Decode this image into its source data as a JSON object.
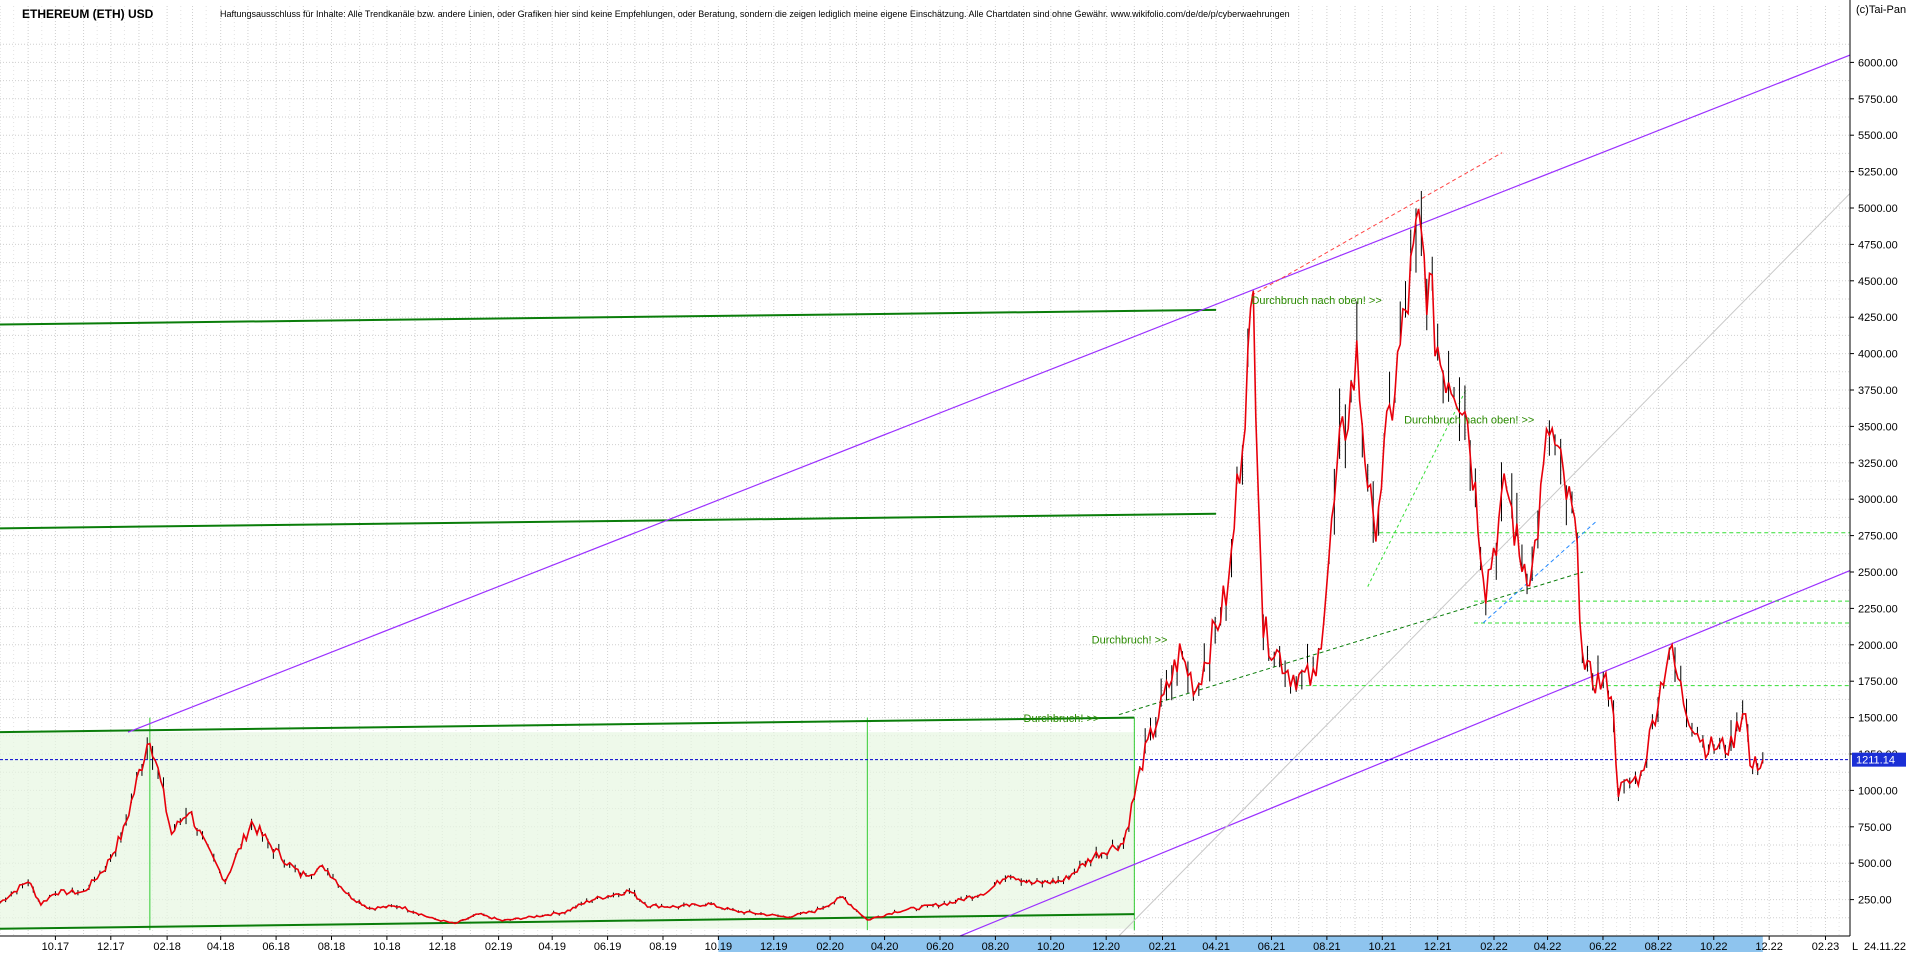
{
  "chart_data": {
    "type": "line",
    "title": "ETHEREUM (ETH) USD",
    "subtitle": "Haftungsausschluss für Inhalte: Alle Trendkanäle bzw. andere Linien, oder Grafiken hier sind keine Empfehlungen, oder Beratung, sondern die zeigen lediglich meine eigene Einschätzung. Alle Chartdaten sind ohne Gewähr.  www.wikifolio.com/de/de/p/cyberwaehrungen",
    "copyright": "(c)Tai-Pan",
    "current_price_label": "1211.14",
    "last_date_label": "24.11.22",
    "axis_letter": "L",
    "ylim": [
      0,
      6250
    ],
    "y_ticks": [
      "250.00",
      "500.00",
      "750.00",
      "1000.00",
      "1250.00",
      "1500.00",
      "1750.00",
      "2000.00",
      "2250.00",
      "2500.00",
      "2750.00",
      "3000.00",
      "3250.00",
      "3500.00",
      "3750.00",
      "4000.00",
      "4250.00",
      "4500.00",
      "4750.00",
      "5000.00",
      "5250.00",
      "5500.00",
      "5750.00",
      "6000.00"
    ],
    "x_ticks": [
      "10.17",
      "12.17",
      "02.18",
      "04.18",
      "06.18",
      "08.18",
      "10.18",
      "12.18",
      "02.19",
      "04.19",
      "06.19",
      "08.19",
      "10.19",
      "12.19",
      "02.20",
      "04.20",
      "06.20",
      "08.20",
      "10.20",
      "12.20",
      "02.21",
      "04.21",
      "06.21",
      "08.21",
      "10.21",
      "12.21",
      "02.22",
      "04.22",
      "06.22",
      "08.22",
      "10.22",
      "12.22",
      "02.23"
    ],
    "x_range": [
      "2017-08-01",
      "2023-02-28"
    ],
    "series": [
      {
        "color": "#e8000b",
        "points": [
          [
            "2017-08-01",
            230
          ],
          [
            "2017-09-01",
            380
          ],
          [
            "2017-09-15",
            220
          ],
          [
            "2017-10-01",
            300
          ],
          [
            "2017-11-01",
            300
          ],
          [
            "2017-11-25",
            470
          ],
          [
            "2017-12-15",
            720
          ],
          [
            "2018-01-13",
            1390
          ],
          [
            "2018-02-06",
            700
          ],
          [
            "2018-02-25",
            870
          ],
          [
            "2018-03-15",
            620
          ],
          [
            "2018-04-06",
            380
          ],
          [
            "2018-05-05",
            780
          ],
          [
            "2018-06-01",
            580
          ],
          [
            "2018-06-28",
            420
          ],
          [
            "2018-07-25",
            470
          ],
          [
            "2018-08-20",
            280
          ],
          [
            "2018-09-12",
            190
          ],
          [
            "2018-10-15",
            205
          ],
          [
            "2018-11-20",
            120
          ],
          [
            "2018-12-15",
            85
          ],
          [
            "2019-01-10",
            150
          ],
          [
            "2019-02-05",
            105
          ],
          [
            "2019-03-15",
            135
          ],
          [
            "2019-04-15",
            165
          ],
          [
            "2019-05-15",
            250
          ],
          [
            "2019-06-25",
            310
          ],
          [
            "2019-07-15",
            210
          ],
          [
            "2019-08-15",
            200
          ],
          [
            "2019-09-20",
            220
          ],
          [
            "2019-10-20",
            170
          ],
          [
            "2019-11-20",
            150
          ],
          [
            "2019-12-15",
            130
          ],
          [
            "2020-01-15",
            170
          ],
          [
            "2020-02-15",
            265
          ],
          [
            "2020-03-13",
            110
          ],
          [
            "2020-04-15",
            170
          ],
          [
            "2020-05-15",
            200
          ],
          [
            "2020-06-15",
            230
          ],
          [
            "2020-07-25",
            310
          ],
          [
            "2020-08-15",
            430
          ],
          [
            "2020-09-10",
            360
          ],
          [
            "2020-10-15",
            380
          ],
          [
            "2020-11-20",
            560
          ],
          [
            "2020-12-20",
            640
          ],
          [
            "2021-01-10",
            1200
          ],
          [
            "2021-02-20",
            1940
          ],
          [
            "2021-03-10",
            1700
          ],
          [
            "2021-04-15",
            2400
          ],
          [
            "2021-05-12",
            4350
          ],
          [
            "2021-05-23",
            2100
          ],
          [
            "2021-06-22",
            1800
          ],
          [
            "2021-07-20",
            1750
          ],
          [
            "2021-08-15",
            3300
          ],
          [
            "2021-09-03",
            3950
          ],
          [
            "2021-09-21",
            2750
          ],
          [
            "2021-10-15",
            3800
          ],
          [
            "2021-11-10",
            4850
          ],
          [
            "2021-12-04",
            3950
          ],
          [
            "2021-12-31",
            3700
          ],
          [
            "2022-01-23",
            2400
          ],
          [
            "2022-02-15",
            3100
          ],
          [
            "2022-03-01",
            2600
          ],
          [
            "2022-03-15",
            2500
          ],
          [
            "2022-04-03",
            3500
          ],
          [
            "2022-05-01",
            2800
          ],
          [
            "2022-05-12",
            1800
          ],
          [
            "2022-06-10",
            1700
          ],
          [
            "2022-06-18",
            1000
          ],
          [
            "2022-07-13",
            1100
          ],
          [
            "2022-08-13",
            1980
          ],
          [
            "2022-09-01",
            1550
          ],
          [
            "2022-09-22",
            1300
          ],
          [
            "2022-10-20",
            1300
          ],
          [
            "2022-11-05",
            1600
          ],
          [
            "2022-11-10",
            1150
          ],
          [
            "2022-11-24",
            1211
          ]
        ]
      }
    ],
    "trendlines": {
      "purple": [
        [
          [
            "2017-12-20",
            1400
          ],
          [
            "2023-02-28",
            6050
          ]
        ],
        [
          [
            "2020-05-15",
            -100
          ],
          [
            "2023-02-28",
            2510
          ]
        ]
      ],
      "green": [
        [
          [
            "2017-08-01",
            4200
          ],
          [
            "2021-04-01",
            4300
          ]
        ],
        [
          [
            "2017-08-01",
            2800
          ],
          [
            "2021-04-01",
            2900
          ]
        ],
        [
          [
            "2017-08-01",
            1400
          ],
          [
            "2021-01-01",
            1500
          ]
        ],
        [
          [
            "2017-08-01",
            50
          ],
          [
            "2021-01-01",
            150
          ]
        ]
      ]
    },
    "annotations": [
      {
        "text": "Durchbruch nach oben! >>",
        "x": "2021-05-10",
        "y": 4340,
        "color": "#2a8a00"
      },
      {
        "text": "Durchbruch nach oben! >>",
        "x": "2021-10-25",
        "y": 3520,
        "color": "#2a8a00"
      },
      {
        "text": "Durchbruch! >>",
        "x": "2020-11-15",
        "y": 2010,
        "color": "#2a8a00"
      },
      {
        "text": "Durchbruch! >>",
        "x": "2020-09-01",
        "y": 1470,
        "color": "#2a8a00"
      }
    ],
    "grid": true,
    "y_axis_position": "right",
    "colors": {
      "price": "#e8000b",
      "candle": "#000000",
      "channel": "#9b30ff",
      "support": "#0a7d0a",
      "last_price": "#0000cc"
    }
  }
}
